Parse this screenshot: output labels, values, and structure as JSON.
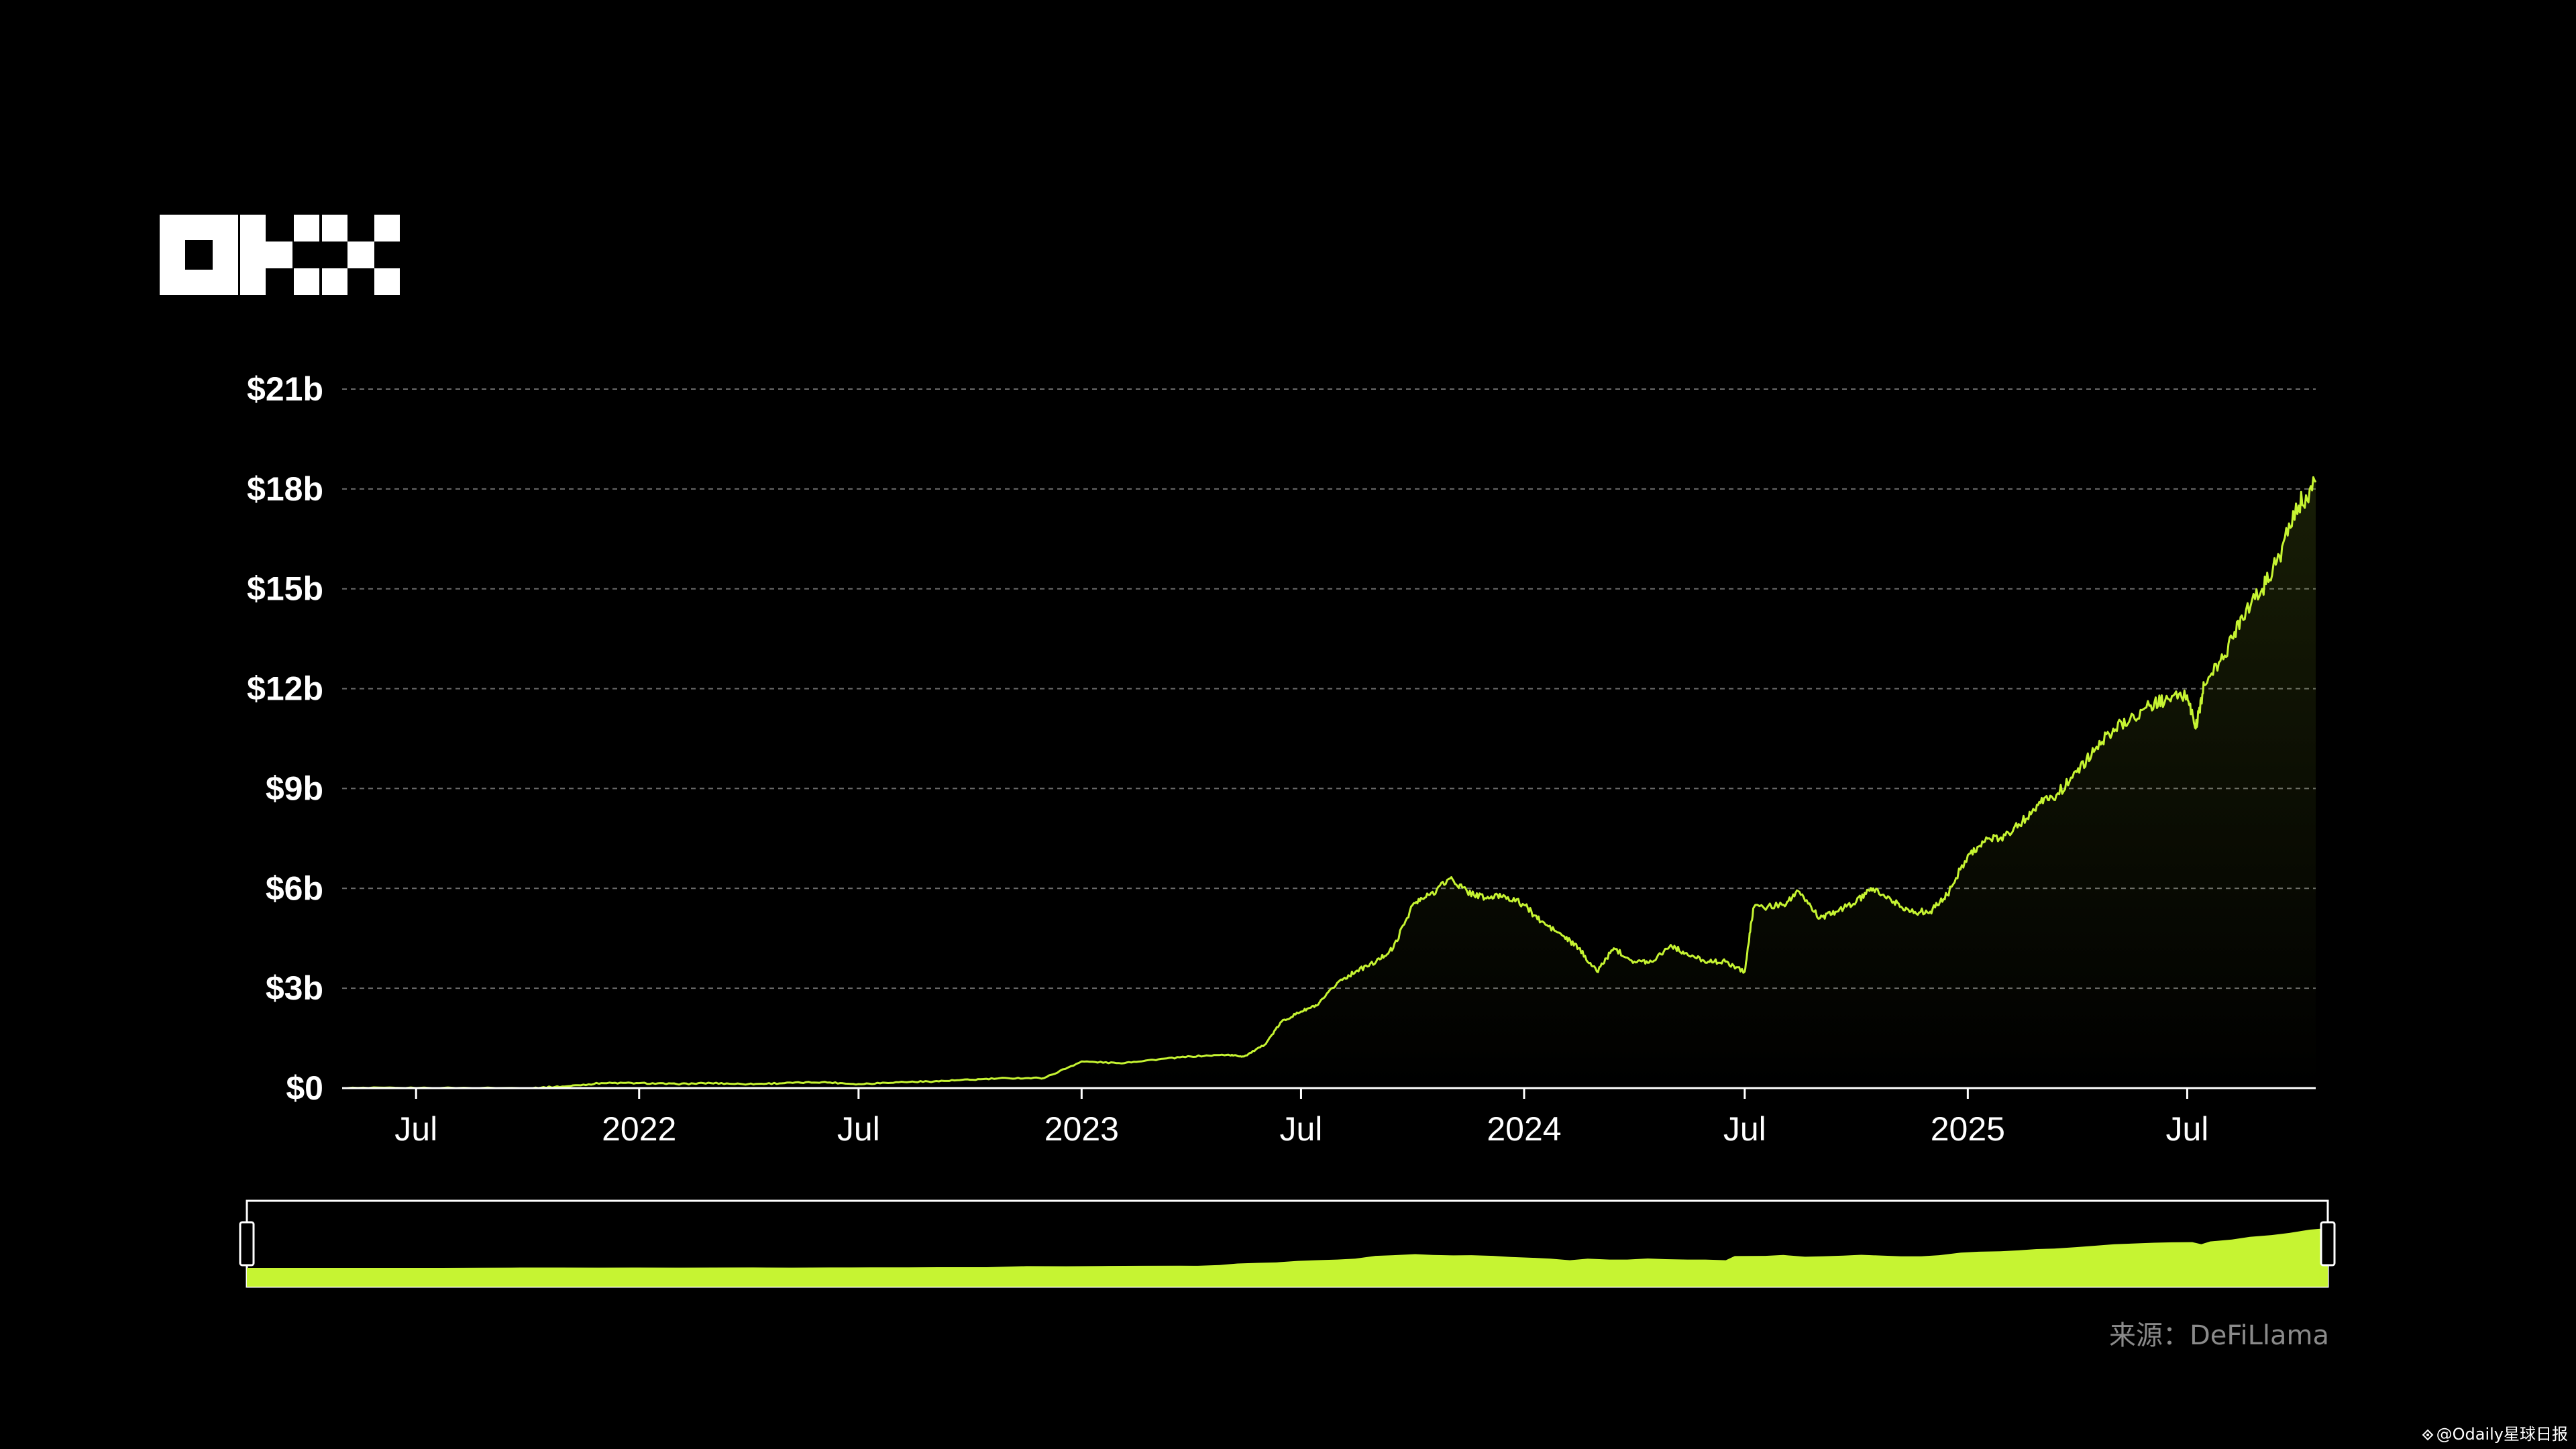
{
  "brand": {
    "logo_text": "OKX",
    "colors": {
      "background": "#000000",
      "accent": "#c6f432",
      "text": "#ffffff",
      "muted": "#8a8a8a"
    }
  },
  "source": {
    "label": "来源：",
    "name": "DeFiLlama"
  },
  "watermark": {
    "icon": "odaily-logo-icon",
    "text": "@Odaily星球日报"
  },
  "chart_data": {
    "type": "area",
    "title": "",
    "xlabel": "",
    "ylabel": "",
    "ylim": [
      0,
      21
    ],
    "y_unit": "$b",
    "yticks": [
      0,
      3,
      6,
      9,
      12,
      15,
      18,
      21
    ],
    "ytick_labels": [
      "$0",
      "$3b",
      "$6b",
      "$9b",
      "$12b",
      "$15b",
      "$18b",
      "$21b"
    ],
    "xlim": [
      "2021-05-01",
      "2025-10-15"
    ],
    "xticks": [
      {
        "date": "2021-07-01",
        "label": "Jul"
      },
      {
        "date": "2022-01-01",
        "label": "2022"
      },
      {
        "date": "2022-07-01",
        "label": "Jul"
      },
      {
        "date": "2023-01-01",
        "label": "2023"
      },
      {
        "date": "2023-07-01",
        "label": "Jul"
      },
      {
        "date": "2024-01-01",
        "label": "2024"
      },
      {
        "date": "2024-07-01",
        "label": "Jul"
      },
      {
        "date": "2025-01-01",
        "label": "2025"
      },
      {
        "date": "2025-07-01",
        "label": "Jul"
      }
    ],
    "grid": true,
    "legend": "none",
    "has_range_slider": true,
    "series": [
      {
        "color": "#c6f432",
        "x": [
          "2021-05-01",
          "2021-07-01",
          "2021-10-01",
          "2021-11-01",
          "2021-12-01",
          "2022-01-01",
          "2022-02-01",
          "2022-03-01",
          "2022-04-01",
          "2022-05-01",
          "2022-06-01",
          "2022-07-01",
          "2022-08-01",
          "2022-09-01",
          "2022-10-01",
          "2022-11-01",
          "2022-12-01",
          "2023-01-01",
          "2023-02-01",
          "2023-03-01",
          "2023-04-01",
          "2023-05-01",
          "2023-05-15",
          "2023-06-01",
          "2023-06-15",
          "2023-07-01",
          "2023-07-15",
          "2023-08-01",
          "2023-08-15",
          "2023-09-01",
          "2023-09-15",
          "2023-10-01",
          "2023-10-15",
          "2023-11-01",
          "2023-11-15",
          "2023-12-01",
          "2023-12-15",
          "2024-01-01",
          "2024-01-15",
          "2024-02-01",
          "2024-02-15",
          "2024-03-01",
          "2024-03-15",
          "2024-04-01",
          "2024-04-15",
          "2024-05-01",
          "2024-05-15",
          "2024-06-01",
          "2024-06-15",
          "2024-07-01",
          "2024-07-08",
          "2024-08-01",
          "2024-08-15",
          "2024-09-01",
          "2024-09-15",
          "2024-10-01",
          "2024-10-15",
          "2024-11-01",
          "2024-11-15",
          "2024-12-01",
          "2024-12-15",
          "2025-01-01",
          "2025-01-15",
          "2025-02-01",
          "2025-02-15",
          "2025-03-01",
          "2025-03-15",
          "2025-04-01",
          "2025-04-15",
          "2025-05-01",
          "2025-05-15",
          "2025-06-01",
          "2025-06-15",
          "2025-07-01",
          "2025-07-08",
          "2025-07-15",
          "2025-08-01",
          "2025-08-15",
          "2025-09-01",
          "2025-09-15",
          "2025-10-01",
          "2025-10-15"
        ],
        "values": [
          0.0,
          0.0,
          0.0,
          0.05,
          0.15,
          0.15,
          0.12,
          0.15,
          0.12,
          0.15,
          0.18,
          0.12,
          0.18,
          0.2,
          0.25,
          0.3,
          0.3,
          0.8,
          0.75,
          0.85,
          0.95,
          1.0,
          0.95,
          1.3,
          2.0,
          2.3,
          2.5,
          3.2,
          3.5,
          3.8,
          4.2,
          5.5,
          5.8,
          6.3,
          5.9,
          5.7,
          5.8,
          5.5,
          5.0,
          4.6,
          4.2,
          3.5,
          4.2,
          3.8,
          3.8,
          4.3,
          4.0,
          3.8,
          3.8,
          3.5,
          5.4,
          5.5,
          5.9,
          5.1,
          5.3,
          5.6,
          6.0,
          5.6,
          5.3,
          5.3,
          5.8,
          7.0,
          7.4,
          7.6,
          8.0,
          8.6,
          8.8,
          9.5,
          10.1,
          10.8,
          11.1,
          11.5,
          11.7,
          11.8,
          10.8,
          12.1,
          13.0,
          14.2,
          15.0,
          16.0,
          17.5,
          18.2
        ]
      }
    ]
  }
}
